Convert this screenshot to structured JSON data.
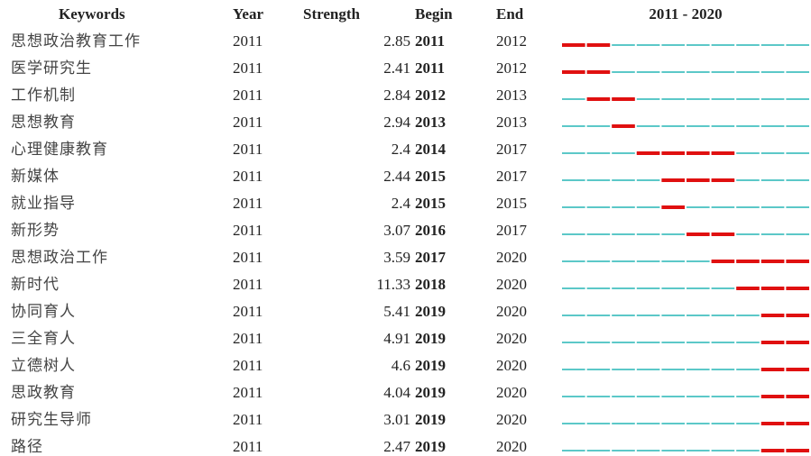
{
  "chart_data": {
    "type": "burst",
    "columns": [
      "Keywords",
      "Year",
      "Strength",
      "Begin",
      "End"
    ],
    "timeline": {
      "label": "2011 - 2020",
      "xlim": [
        2011,
        2020
      ]
    },
    "colors": {
      "base": "#5cc8c8",
      "burst": "#e01010"
    },
    "rows": [
      {
        "keyword": "思想政治教育工作",
        "year": 2011,
        "strength": 2.85,
        "begin": 2011,
        "end": 2012
      },
      {
        "keyword": "医学研究生",
        "year": 2011,
        "strength": 2.41,
        "begin": 2011,
        "end": 2012
      },
      {
        "keyword": "工作机制",
        "year": 2011,
        "strength": 2.84,
        "begin": 2012,
        "end": 2013
      },
      {
        "keyword": "思想教育",
        "year": 2011,
        "strength": 2.94,
        "begin": 2013,
        "end": 2013
      },
      {
        "keyword": "心理健康教育",
        "year": 2011,
        "strength": 2.4,
        "begin": 2014,
        "end": 2017
      },
      {
        "keyword": "新媒体",
        "year": 2011,
        "strength": 2.44,
        "begin": 2015,
        "end": 2017
      },
      {
        "keyword": "就业指导",
        "year": 2011,
        "strength": 2.4,
        "begin": 2015,
        "end": 2015
      },
      {
        "keyword": "新形势",
        "year": 2011,
        "strength": 3.07,
        "begin": 2016,
        "end": 2017
      },
      {
        "keyword": "思想政治工作",
        "year": 2011,
        "strength": 3.59,
        "begin": 2017,
        "end": 2020
      },
      {
        "keyword": "新时代",
        "year": 2011,
        "strength": 11.33,
        "begin": 2018,
        "end": 2020
      },
      {
        "keyword": "协同育人",
        "year": 2011,
        "strength": 5.41,
        "begin": 2019,
        "end": 2020
      },
      {
        "keyword": "三全育人",
        "year": 2011,
        "strength": 4.91,
        "begin": 2019,
        "end": 2020
      },
      {
        "keyword": "立德树人",
        "year": 2011,
        "strength": 4.6,
        "begin": 2019,
        "end": 2020
      },
      {
        "keyword": "思政教育",
        "year": 2011,
        "strength": 4.04,
        "begin": 2019,
        "end": 2020
      },
      {
        "keyword": "研究生导师",
        "year": 2011,
        "strength": 3.01,
        "begin": 2019,
        "end": 2020
      },
      {
        "keyword": "路径",
        "year": 2011,
        "strength": 2.47,
        "begin": 2019,
        "end": 2020
      }
    ]
  }
}
